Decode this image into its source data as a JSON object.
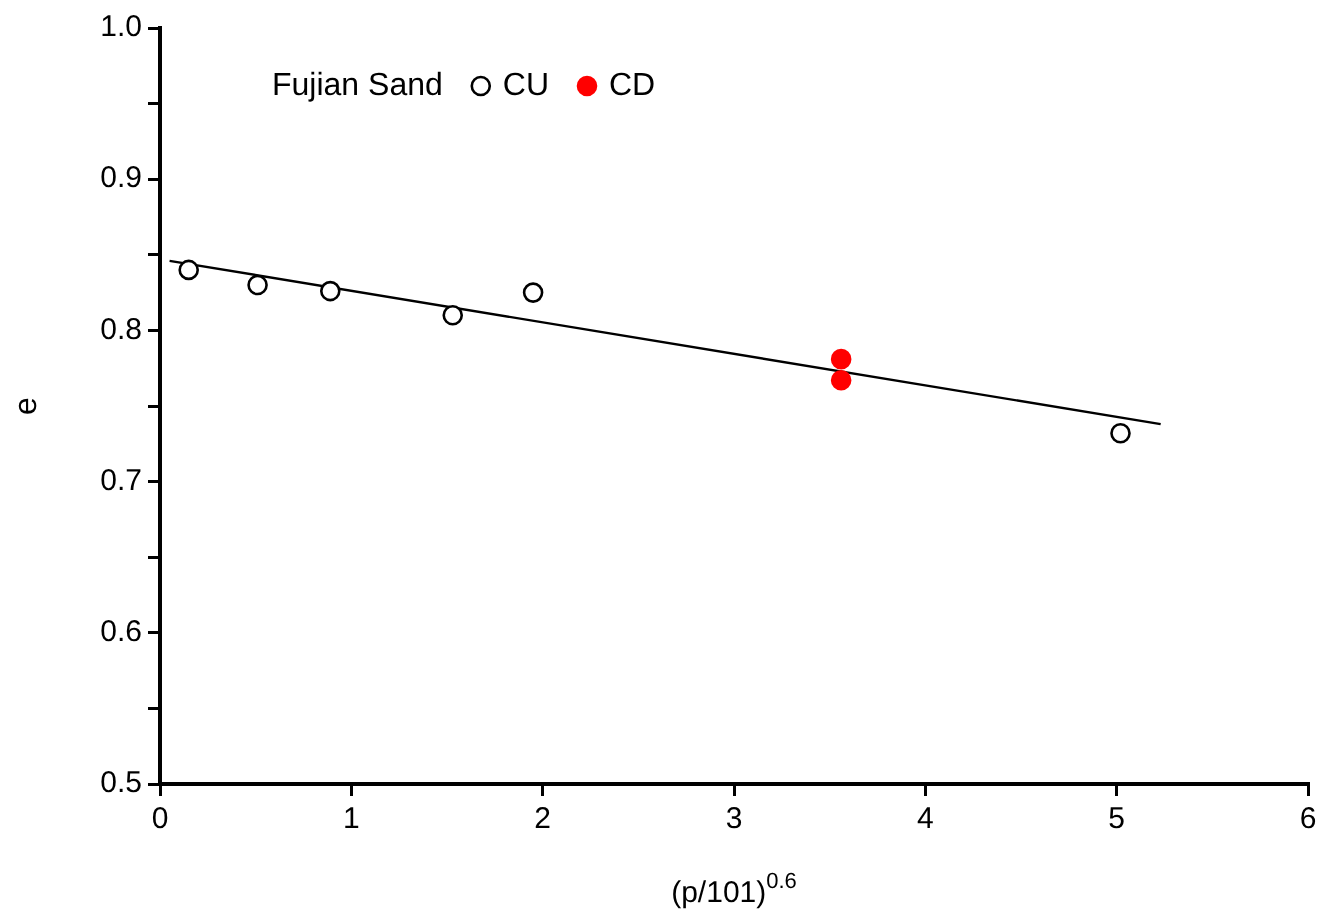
{
  "chart_data": {
    "type": "scatter",
    "xlabel": "(p/101)$^{0.6}$",
    "ylabel": "e",
    "legend_title": "Fujian Sand",
    "legend": "top",
    "marker": "circle",
    "grid": false,
    "xlim": [
      0,
      6
    ],
    "xticks": [
      0,
      1,
      2,
      3,
      4,
      5,
      6
    ],
    "ylim": [
      0.5,
      1.0
    ],
    "yticks": [
      0.5,
      {
        "value": 0.55,
        "label": null
      },
      0.6,
      {
        "value": 0.65,
        "label": null
      },
      0.7,
      {
        "value": 0.75,
        "label": null
      },
      0.8,
      {
        "value": 0.85,
        "label": null
      },
      0.9,
      {
        "value": 0.95,
        "label": null
      },
      {
        "value": 1.0,
        "label": "1.0"
      }
    ],
    "series": [
      {
        "name": "CU",
        "color": "#000000",
        "x": [
          0.15,
          0.51,
          0.89,
          1.53,
          1.95,
          5.02
        ],
        "values": [
          0.84,
          0.83,
          0.826,
          0.81,
          0.825,
          0.732
        ]
      },
      {
        "name": "CD",
        "color": "#ff0000",
        "x": [
          3.56,
          3.56
        ],
        "values": [
          0.781,
          0.767
        ]
      },
      {
        "type": "line",
        "color": "#000000",
        "marker": "none",
        "x": [
          0.05,
          5.23
        ],
        "values": [
          0.846,
          0.738
        ]
      }
    ]
  }
}
